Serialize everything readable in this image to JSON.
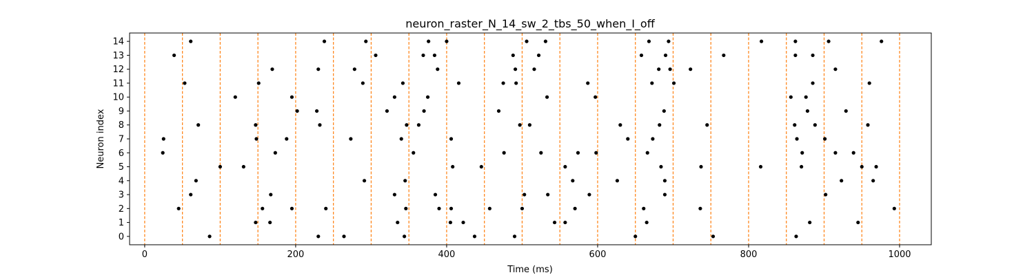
{
  "chart_data": {
    "type": "scatter",
    "title": "neuron_raster_N_14_sw_2_tbs_50_when_I_off",
    "xlabel": "Time (ms)",
    "ylabel": "Neuron index",
    "xlim": [
      -20,
      1042
    ],
    "ylim": [
      -0.6,
      14.6
    ],
    "x_ticks": [
      0,
      200,
      400,
      600,
      800,
      1000
    ],
    "y_ticks": [
      0,
      1,
      2,
      3,
      4,
      5,
      6,
      7,
      8,
      9,
      10,
      11,
      12,
      13,
      14
    ],
    "grid": false,
    "point_color": "#000000",
    "vline_color": "#ff7f0e",
    "vlines": [
      0,
      50,
      100,
      150,
      200,
      250,
      300,
      350,
      400,
      450,
      500,
      550,
      600,
      650,
      700,
      750,
      800,
      850,
      900,
      950,
      1000
    ],
    "series": [
      {
        "neuron": 0,
        "spikes": [
          86,
          230,
          264,
          344,
          437,
          490,
          650,
          753,
          863
        ]
      },
      {
        "neuron": 1,
        "spikes": [
          147,
          166,
          335,
          405,
          422,
          543,
          557,
          665,
          881,
          945
        ]
      },
      {
        "neuron": 2,
        "spikes": [
          45,
          156,
          195,
          240,
          346,
          390,
          406,
          457,
          500,
          570,
          661,
          736,
          993
        ]
      },
      {
        "neuron": 3,
        "spikes": [
          61,
          167,
          331,
          385,
          503,
          534,
          589,
          689,
          902
        ]
      },
      {
        "neuron": 4,
        "spikes": [
          68,
          291,
          345,
          567,
          626,
          689,
          923,
          965
        ]
      },
      {
        "neuron": 5,
        "spikes": [
          100,
          131,
          408,
          446,
          557,
          684,
          737,
          816,
          870,
          950,
          969
        ]
      },
      {
        "neuron": 6,
        "spikes": [
          24,
          173,
          356,
          476,
          525,
          574,
          598,
          666,
          871,
          915,
          939
        ]
      },
      {
        "neuron": 7,
        "spikes": [
          25,
          148,
          188,
          273,
          340,
          406,
          640,
          673,
          864,
          901
        ]
      },
      {
        "neuron": 8,
        "spikes": [
          71,
          147,
          232,
          347,
          363,
          497,
          510,
          630,
          682,
          745,
          861,
          888,
          958
        ]
      },
      {
        "neuron": 9,
        "spikes": [
          202,
          228,
          321,
          370,
          469,
          688,
          878,
          929
        ]
      },
      {
        "neuron": 10,
        "spikes": [
          120,
          195,
          331,
          375,
          533,
          597,
          856,
          876
        ]
      },
      {
        "neuron": 11,
        "spikes": [
          53,
          151,
          289,
          342,
          416,
          475,
          492,
          587,
          672,
          701,
          885,
          960
        ]
      },
      {
        "neuron": 12,
        "spikes": [
          169,
          230,
          278,
          388,
          491,
          516,
          681,
          696,
          723,
          915
        ]
      },
      {
        "neuron": 13,
        "spikes": [
          39,
          306,
          369,
          384,
          488,
          522,
          658,
          690,
          767,
          862,
          885
        ]
      },
      {
        "neuron": 14,
        "spikes": [
          61,
          238,
          293,
          376,
          400,
          506,
          531,
          668,
          694,
          817,
          862,
          906,
          976
        ]
      }
    ]
  }
}
